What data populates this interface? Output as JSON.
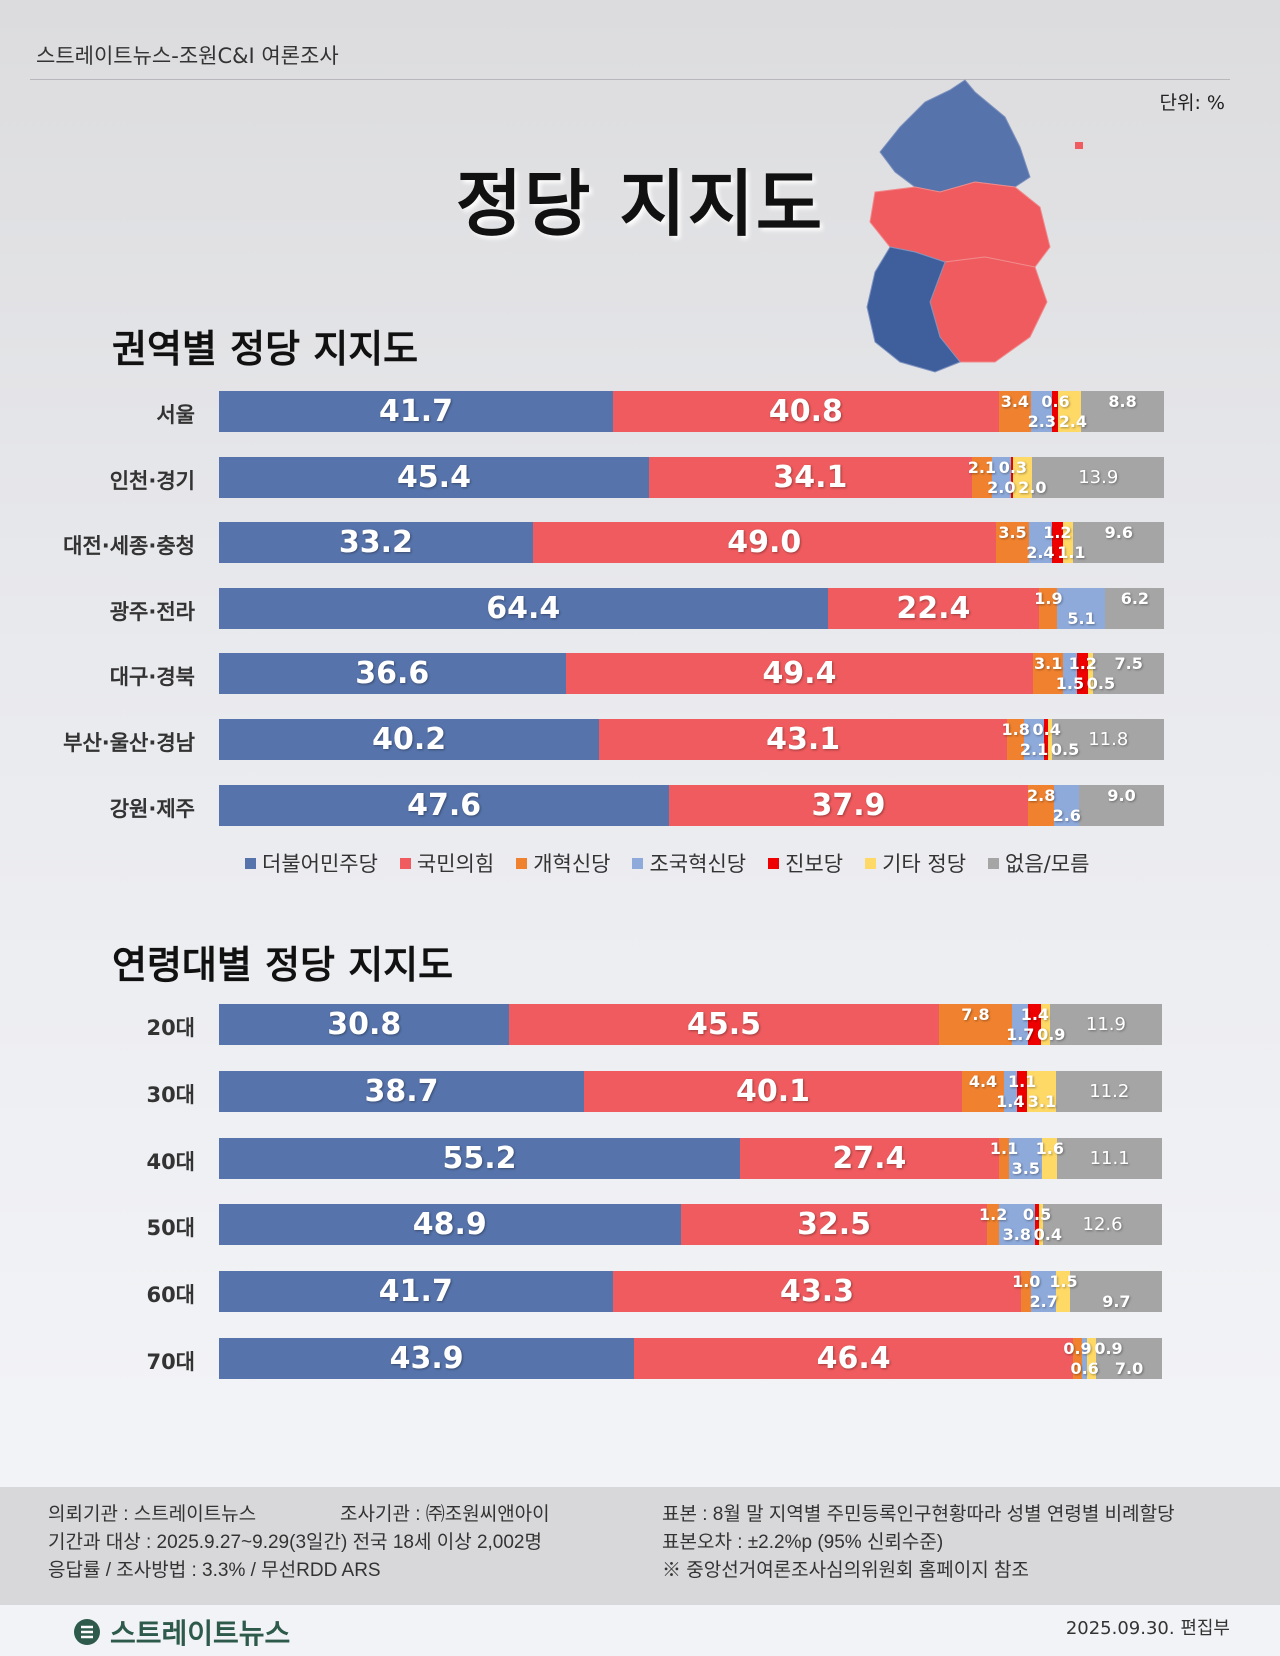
{
  "header": "스트레이트뉴스-조원C&I 여론조사",
  "unit": "단위: %",
  "title": "정당 지지도",
  "legend_colors": {
    "더불어민주당": "#5673ab",
    "국민의힘": "#ef5b5e",
    "개혁신당": "#f0822f",
    "조국혁신당": "#8eaadb",
    "진보당": "#ee0000",
    "기타 정당": "#ffd966",
    "없음/모름": "#a5a5a5"
  },
  "chart_data": [
    {
      "type": "bar",
      "stacked": true,
      "orientation": "horizontal",
      "title": "권역별 정당 지지도",
      "unit": "%",
      "legend": [
        "더불어민주당",
        "국민의힘",
        "개혁신당",
        "조국혁신당",
        "진보당",
        "기타 정당",
        "없음/모름"
      ],
      "categories": [
        "서울",
        "인천·경기",
        "대전·세종·충청",
        "광주·전라",
        "대구·경북",
        "부산·울산·경남",
        "강원·제주"
      ],
      "series": [
        {
          "name": "더불어민주당",
          "values": [
            41.7,
            45.4,
            33.2,
            64.4,
            36.6,
            40.2,
            47.6
          ]
        },
        {
          "name": "국민의힘",
          "values": [
            40.8,
            34.1,
            49.0,
            22.4,
            49.4,
            43.1,
            37.9
          ]
        },
        {
          "name": "개혁신당",
          "values": [
            3.4,
            2.1,
            3.5,
            1.9,
            3.1,
            1.8,
            2.8
          ]
        },
        {
          "name": "조국혁신당",
          "values": [
            2.3,
            2.0,
            2.4,
            5.1,
            1.5,
            2.1,
            2.6
          ]
        },
        {
          "name": "진보당",
          "values": [
            0.6,
            0.3,
            1.2,
            null,
            1.2,
            0.4,
            null
          ]
        },
        {
          "name": "기타 정당",
          "values": [
            2.4,
            2.0,
            1.1,
            null,
            0.5,
            0.5,
            null
          ]
        },
        {
          "name": "없음/모름",
          "values": [
            8.8,
            13.9,
            9.6,
            6.2,
            7.5,
            11.8,
            9.0
          ]
        }
      ]
    },
    {
      "type": "bar",
      "stacked": true,
      "orientation": "horizontal",
      "title": "연령대별 정당 지지도",
      "unit": "%",
      "categories": [
        "20대",
        "30대",
        "40대",
        "50대",
        "60대",
        "70대"
      ],
      "series": [
        {
          "name": "더불어민주당",
          "values": [
            30.8,
            38.7,
            55.2,
            48.9,
            41.7,
            43.9
          ]
        },
        {
          "name": "국민의힘",
          "values": [
            45.5,
            40.1,
            27.4,
            32.5,
            43.3,
            46.4
          ]
        },
        {
          "name": "개혁신당",
          "values": [
            7.8,
            4.4,
            1.1,
            1.2,
            1.0,
            0.9
          ]
        },
        {
          "name": "조국혁신당",
          "values": [
            1.7,
            1.4,
            3.5,
            3.8,
            2.7,
            0.6
          ]
        },
        {
          "name": "진보당",
          "values": [
            1.4,
            1.1,
            null,
            0.5,
            null,
            null
          ]
        },
        {
          "name": "기타 정당",
          "values": [
            0.9,
            3.1,
            1.6,
            0.4,
            1.5,
            0.9
          ]
        },
        {
          "name": "없음/모름",
          "values": [
            11.9,
            11.2,
            11.1,
            12.6,
            9.7,
            7.0
          ]
        }
      ]
    }
  ],
  "footer": {
    "client": "의뢰기관 : 스트레이트뉴스",
    "agency": "조사기관 : ㈜조원씨앤아이",
    "period": "기간과 대상 : 2025.9.27~9.29(3일간)   전국 18세 이상  2,002명",
    "method": "응답률 / 조사방법 : 3.3% / 무선RDD ARS",
    "sample": "표본 : 8월 말 지역별 주민등록인구현황따라 성별 연령별 비례할당",
    "error": "표본오차 : ±2.2%p (95% 신뢰수준)",
    "note": "※ 중앙선거여론조사심의위원회 홈페이지 참조"
  },
  "brand": "스트레이트뉴스",
  "date": "2025.09.30. 편집부"
}
